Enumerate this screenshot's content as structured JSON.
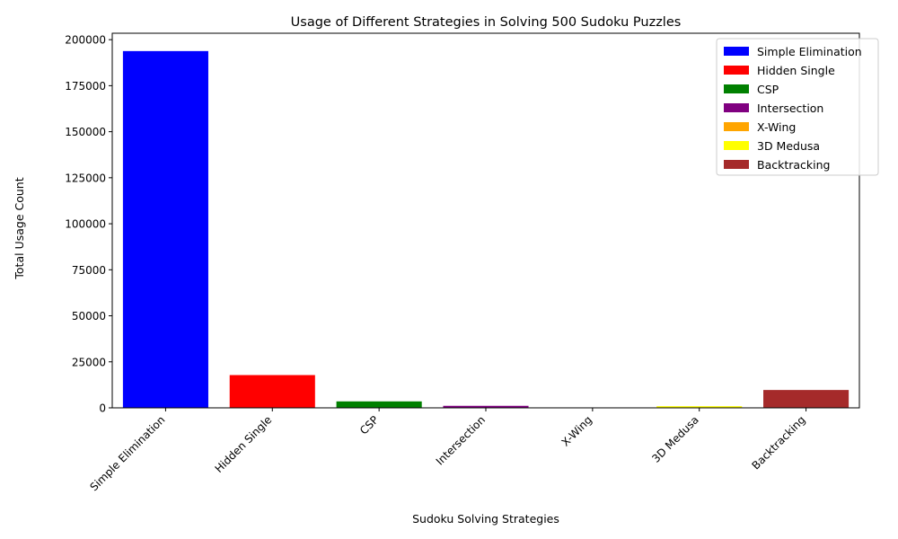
{
  "chart_data": {
    "type": "bar",
    "title": "Usage of Different Strategies in Solving 500 Sudoku Puzzles",
    "xlabel": "Sudoku Solving Strategies",
    "ylabel": "Total Usage Count",
    "categories": [
      "Simple Elimination",
      "Hidden Single",
      "CSP",
      "Intersection",
      "X-Wing",
      "3D Medusa",
      "Backtracking"
    ],
    "values": [
      193800,
      17800,
      3500,
      1100,
      150,
      900,
      9700
    ],
    "colors": [
      "#0000ff",
      "#ff0000",
      "#008000",
      "#800080",
      "#ffa500",
      "#ffff00",
      "#a52a2a"
    ],
    "ylim": [
      0,
      203490
    ],
    "yticks": [
      0,
      25000,
      50000,
      75000,
      100000,
      125000,
      150000,
      175000,
      200000
    ],
    "grid": false,
    "legend_position": "top-right",
    "legend": [
      "Simple Elimination",
      "Hidden Single",
      "CSP",
      "Intersection",
      "X-Wing",
      "3D Medusa",
      "Backtracking"
    ]
  }
}
